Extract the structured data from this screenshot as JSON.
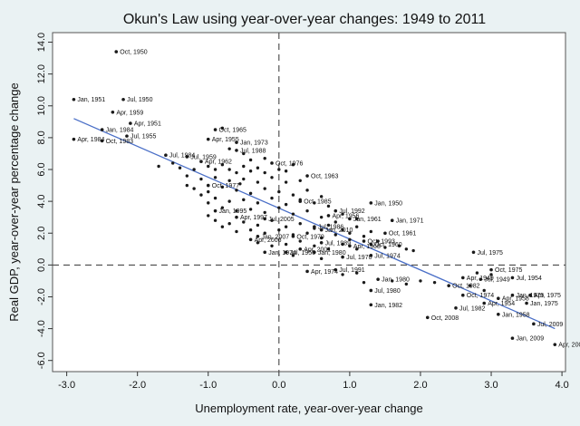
{
  "colors": {
    "background": "#eaf2f3",
    "plot_background": "#ffffff",
    "point": "#1a1a1a",
    "fit_line": "#4a6fc7",
    "reference_line": "#333333"
  },
  "chart_data": {
    "type": "scatter",
    "title": "Okun's Law using year-over-year changes: 1949 to 2011",
    "xlabel": "Unemployment rate, year-over-year change",
    "ylabel": "Real GDP, year-over-year percentage change",
    "xlim": [
      -3.2,
      4.05
    ],
    "ylim": [
      -6.7,
      14.6
    ],
    "xticks": [
      "-3.0",
      "-2.0",
      "-1.0",
      "0.0",
      "1.0",
      "2.0",
      "3.0",
      "4.0"
    ],
    "yticks": [
      "-6.0",
      "-4.0",
      "-2.0",
      "0.0",
      "2.0",
      "4.0",
      "6.0",
      "8.0",
      "10.0",
      "12.0",
      "14.0"
    ],
    "grid": false,
    "reference_lines": {
      "x": 0,
      "y": 0
    },
    "fit_line": {
      "x": [
        -2.9,
        3.9
      ],
      "y": [
        9.2,
        -4.0
      ]
    },
    "labeled_points": [
      {
        "x": -2.3,
        "y": 13.4,
        "label": "Oct, 1950"
      },
      {
        "x": -2.9,
        "y": 10.4,
        "label": "Jan, 1951"
      },
      {
        "x": -2.2,
        "y": 10.4,
        "label": "Jul, 1950"
      },
      {
        "x": -2.35,
        "y": 9.6,
        "label": "Apr, 1959"
      },
      {
        "x": -2.1,
        "y": 8.9,
        "label": "Apr, 1951"
      },
      {
        "x": -2.5,
        "y": 8.5,
        "label": "Jan, 1984"
      },
      {
        "x": -2.9,
        "y": 7.9,
        "label": "Apr, 1984"
      },
      {
        "x": -2.15,
        "y": 8.1,
        "label": "Jul, 1955"
      },
      {
        "x": -2.5,
        "y": 7.8,
        "label": "Oct, 1983"
      },
      {
        "x": -1.0,
        "y": 7.9,
        "label": "Apr, 1955"
      },
      {
        "x": -0.6,
        "y": 7.7,
        "label": "Jan, 1973"
      },
      {
        "x": -0.9,
        "y": 8.5,
        "label": "Oct, 1965"
      },
      {
        "x": -0.6,
        "y": 7.2,
        "label": "Jul, 1988"
      },
      {
        "x": -1.0,
        "y": 5.0,
        "label": "Oct, 1977"
      },
      {
        "x": 1.3,
        "y": 3.9,
        "label": "Jan, 1950"
      },
      {
        "x": 0.8,
        "y": 3.4,
        "label": "Jul, 1992"
      },
      {
        "x": -0.9,
        "y": 3.4,
        "label": "Jan, 1995"
      },
      {
        "x": 1.6,
        "y": 2.8,
        "label": "Jan, 1971"
      },
      {
        "x": 1.5,
        "y": 2.0,
        "label": "Oct, 1961"
      },
      {
        "x": 0.6,
        "y": 2.2,
        "label": "Jan, 2010"
      },
      {
        "x": -0.2,
        "y": 0.8,
        "label": "Jan, 1974"
      },
      {
        "x": 0.5,
        "y": 0.8,
        "label": "Jan, 1980"
      },
      {
        "x": 0.4,
        "y": -0.4,
        "label": "Apr, 1974"
      },
      {
        "x": 0.8,
        "y": -0.3,
        "label": "Jul, 1991"
      },
      {
        "x": 2.75,
        "y": 0.8,
        "label": "Jul, 1975"
      },
      {
        "x": 3.0,
        "y": -0.3,
        "label": "Oct, 1975"
      },
      {
        "x": 2.85,
        "y": -0.9,
        "label": "Jul, 1949"
      },
      {
        "x": 3.3,
        "y": -0.8,
        "label": "Jul, 1954"
      },
      {
        "x": 2.6,
        "y": -0.8,
        "label": "Apr, 1949"
      },
      {
        "x": 2.4,
        "y": -1.3,
        "label": "Oct, 1982"
      },
      {
        "x": 1.4,
        "y": -0.9,
        "label": "Jan, 1980"
      },
      {
        "x": 1.3,
        "y": -1.6,
        "label": "Jul, 1980"
      },
      {
        "x": 2.6,
        "y": -1.9,
        "label": "Oct, 1974"
      },
      {
        "x": 3.3,
        "y": -1.9,
        "label": "Jan, 1975"
      },
      {
        "x": 3.55,
        "y": -1.9,
        "label": "Apr, 1975"
      },
      {
        "x": 3.1,
        "y": -2.1,
        "label": "Apr, 1958"
      },
      {
        "x": 2.9,
        "y": -2.4,
        "label": "Apr, 1954"
      },
      {
        "x": 3.5,
        "y": -2.4,
        "label": "Jan, 1975"
      },
      {
        "x": 1.3,
        "y": -2.5,
        "label": "Jan, 1982"
      },
      {
        "x": 2.5,
        "y": -2.7,
        "label": "Jul, 1982"
      },
      {
        "x": 3.1,
        "y": -3.1,
        "label": "Jan, 1958"
      },
      {
        "x": 2.1,
        "y": -3.3,
        "label": "Oct, 2008"
      },
      {
        "x": 3.6,
        "y": -3.7,
        "label": "Jul, 2009"
      },
      {
        "x": 3.3,
        "y": -4.6,
        "label": "Jan, 2009"
      },
      {
        "x": 3.9,
        "y": -5.0,
        "label": "Apr, 2009"
      },
      {
        "x": -1.6,
        "y": 6.9,
        "label": "Jul, 1984"
      },
      {
        "x": -1.3,
        "y": 6.8,
        "label": "Jul, 1959"
      },
      {
        "x": -1.1,
        "y": 6.5,
        "label": "Apr, 1962"
      },
      {
        "x": -0.1,
        "y": 6.4,
        "label": "Oct, 1976"
      },
      {
        "x": 0.4,
        "y": 5.6,
        "label": "Oct, 1963"
      },
      {
        "x": 0.3,
        "y": 4.0,
        "label": "Oct, 1985"
      },
      {
        "x": 0.7,
        "y": 3.1,
        "label": "Apr, 1956"
      },
      {
        "x": 0.5,
        "y": 2.4,
        "label": "Jul, 1986"
      },
      {
        "x": 0.2,
        "y": 1.8,
        "label": "Oct, 1979"
      },
      {
        "x": -0.3,
        "y": 1.8,
        "label": "Jan, 2007"
      },
      {
        "x": 0.6,
        "y": 1.4,
        "label": "Jul, 1989"
      },
      {
        "x": 1.0,
        "y": 1.2,
        "label": "Apr, 1968"
      },
      {
        "x": 1.2,
        "y": 1.5,
        "label": "Oct, 1993"
      },
      {
        "x": 0.9,
        "y": 0.5,
        "label": "Jul, 1970"
      },
      {
        "x": -0.6,
        "y": 3.0,
        "label": "Apr, 1997"
      },
      {
        "x": -0.2,
        "y": 2.9,
        "label": "Jul, 2005"
      },
      {
        "x": -0.4,
        "y": 1.6,
        "label": "Apr, 2006"
      },
      {
        "x": 0.1,
        "y": 0.8,
        "label": "Jul, 1956"
      },
      {
        "x": 0.3,
        "y": 1.0,
        "label": "Apr, 2001"
      },
      {
        "x": 1.0,
        "y": 2.9,
        "label": "Jan, 1961"
      },
      {
        "x": 1.3,
        "y": 1.3,
        "label": "Oct, 1960"
      },
      {
        "x": 1.3,
        "y": 0.6,
        "label": "Jul, 1974"
      }
    ],
    "points": [
      {
        "x": -1.5,
        "y": 6.4
      },
      {
        "x": -1.4,
        "y": 6.1
      },
      {
        "x": -1.2,
        "y": 6.0
      },
      {
        "x": -1.0,
        "y": 6.2
      },
      {
        "x": -0.9,
        "y": 6.0
      },
      {
        "x": -0.8,
        "y": 6.3
      },
      {
        "x": -0.7,
        "y": 6.0
      },
      {
        "x": -0.6,
        "y": 5.8
      },
      {
        "x": -0.5,
        "y": 6.2
      },
      {
        "x": -0.4,
        "y": 5.9
      },
      {
        "x": -0.3,
        "y": 6.1
      },
      {
        "x": -0.2,
        "y": 5.8
      },
      {
        "x": 0.0,
        "y": 6.0
      },
      {
        "x": 0.1,
        "y": 5.9
      },
      {
        "x": -1.3,
        "y": 5.6
      },
      {
        "x": -1.1,
        "y": 5.4
      },
      {
        "x": -0.9,
        "y": 5.5
      },
      {
        "x": -0.7,
        "y": 5.3
      },
      {
        "x": -0.5,
        "y": 5.4
      },
      {
        "x": -0.3,
        "y": 5.2
      },
      {
        "x": -0.1,
        "y": 5.5
      },
      {
        "x": 0.1,
        "y": 5.2
      },
      {
        "x": 0.3,
        "y": 5.3
      },
      {
        "x": -1.2,
        "y": 4.8
      },
      {
        "x": -1.0,
        "y": 4.6
      },
      {
        "x": -0.8,
        "y": 4.9
      },
      {
        "x": -0.6,
        "y": 4.7
      },
      {
        "x": -0.4,
        "y": 4.5
      },
      {
        "x": -0.2,
        "y": 4.8
      },
      {
        "x": 0.0,
        "y": 4.6
      },
      {
        "x": 0.2,
        "y": 4.4
      },
      {
        "x": 0.4,
        "y": 4.7
      },
      {
        "x": 0.6,
        "y": 4.3
      },
      {
        "x": -0.9,
        "y": 4.2
      },
      {
        "x": -0.7,
        "y": 4.0
      },
      {
        "x": -0.5,
        "y": 4.1
      },
      {
        "x": -0.3,
        "y": 3.9
      },
      {
        "x": -0.1,
        "y": 4.2
      },
      {
        "x": 0.1,
        "y": 3.8
      },
      {
        "x": 0.3,
        "y": 4.1
      },
      {
        "x": 0.5,
        "y": 3.9
      },
      {
        "x": 0.7,
        "y": 3.7
      },
      {
        "x": -0.8,
        "y": 3.6
      },
      {
        "x": -0.6,
        "y": 3.4
      },
      {
        "x": -0.4,
        "y": 3.5
      },
      {
        "x": -0.2,
        "y": 3.3
      },
      {
        "x": 0.0,
        "y": 3.6
      },
      {
        "x": 0.2,
        "y": 3.2
      },
      {
        "x": 0.4,
        "y": 3.4
      },
      {
        "x": 0.6,
        "y": 3.0
      },
      {
        "x": 0.9,
        "y": 3.2
      },
      {
        "x": 1.1,
        "y": 2.9
      },
      {
        "x": -0.9,
        "y": 2.8
      },
      {
        "x": -0.7,
        "y": 2.6
      },
      {
        "x": -0.5,
        "y": 2.7
      },
      {
        "x": -0.3,
        "y": 2.5
      },
      {
        "x": -0.1,
        "y": 2.8
      },
      {
        "x": 0.1,
        "y": 2.4
      },
      {
        "x": 0.3,
        "y": 2.6
      },
      {
        "x": 0.5,
        "y": 2.3
      },
      {
        "x": 0.7,
        "y": 2.5
      },
      {
        "x": 0.9,
        "y": 2.2
      },
      {
        "x": 1.1,
        "y": 2.4
      },
      {
        "x": 1.3,
        "y": 2.1
      },
      {
        "x": -0.6,
        "y": 2.1
      },
      {
        "x": -0.4,
        "y": 2.2
      },
      {
        "x": -0.2,
        "y": 2.0
      },
      {
        "x": 0.0,
        "y": 2.2
      },
      {
        "x": 0.2,
        "y": 1.9
      },
      {
        "x": 0.4,
        "y": 2.0
      },
      {
        "x": 0.6,
        "y": 1.7
      },
      {
        "x": 0.8,
        "y": 1.9
      },
      {
        "x": 1.0,
        "y": 1.6
      },
      {
        "x": 1.2,
        "y": 1.8
      },
      {
        "x": 1.4,
        "y": 1.5
      },
      {
        "x": -0.3,
        "y": 1.4
      },
      {
        "x": -0.1,
        "y": 1.2
      },
      {
        "x": 0.1,
        "y": 1.3
      },
      {
        "x": 0.3,
        "y": 1.5
      },
      {
        "x": 0.5,
        "y": 1.2
      },
      {
        "x": 0.7,
        "y": 1.0
      },
      {
        "x": 0.9,
        "y": 1.3
      },
      {
        "x": 1.1,
        "y": 1.0
      },
      {
        "x": 1.5,
        "y": 1.1
      },
      {
        "x": 1.7,
        "y": 1.2
      },
      {
        "x": 1.8,
        "y": 1.0
      },
      {
        "x": 1.9,
        "y": 0.9
      },
      {
        "x": 0.9,
        "y": -0.6
      },
      {
        "x": 1.1,
        "y": -0.5
      },
      {
        "x": 1.2,
        "y": -1.1
      },
      {
        "x": 1.6,
        "y": -1.0
      },
      {
        "x": 1.8,
        "y": -1.2
      },
      {
        "x": 2.0,
        "y": -1.0
      },
      {
        "x": 2.2,
        "y": -1.1
      },
      {
        "x": 2.7,
        "y": -1.3
      },
      {
        "x": 2.9,
        "y": -1.6
      },
      {
        "x": 3.0,
        "y": -0.6
      },
      {
        "x": 2.8,
        "y": -0.5
      },
      {
        "x": -1.3,
        "y": 5.0
      },
      {
        "x": -1.1,
        "y": 4.4
      },
      {
        "x": -1.0,
        "y": 3.9
      },
      {
        "x": -1.0,
        "y": 3.1
      },
      {
        "x": -0.8,
        "y": 2.4
      },
      {
        "x": 0.8,
        "y": 2.7
      },
      {
        "x": 1.0,
        "y": 2.0
      },
      {
        "x": 0.2,
        "y": 0.6
      },
      {
        "x": 0.6,
        "y": 0.4
      },
      {
        "x": -0.4,
        "y": 6.6
      },
      {
        "x": -0.2,
        "y": 6.7
      },
      {
        "x": 0.2,
        "y": 6.3
      },
      {
        "x": -0.7,
        "y": 7.3
      },
      {
        "x": -0.5,
        "y": 7.0
      },
      {
        "x": -1.7,
        "y": 6.2
      },
      {
        "x": -0.8,
        "y": 8.6
      },
      {
        "x": -0.55,
        "y": 5.1
      }
    ]
  }
}
